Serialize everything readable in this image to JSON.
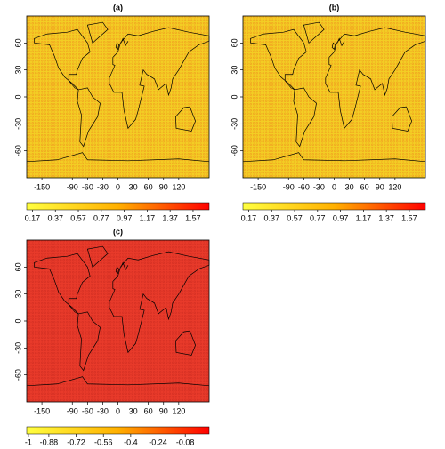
{
  "panels": [
    {
      "label": "(a)",
      "xlim": [
        -180,
        180
      ],
      "ylim": [
        -90,
        90
      ],
      "xticks": [
        -150,
        -90,
        -60,
        -30,
        0,
        30,
        60,
        90,
        120
      ],
      "yticks": [
        60,
        30,
        0,
        -30,
        -60
      ],
      "fill": "#f3cd24",
      "dot_color": "#f08a1c",
      "colorbar": {
        "lim": [
          0.12,
          1.71
        ],
        "ticks": [
          0.17,
          0.37,
          0.57,
          0.77,
          0.97,
          1.17,
          1.37,
          1.57
        ],
        "colors": [
          "#ffff40",
          "#ffb000",
          "#ff0000"
        ]
      }
    },
    {
      "label": "(b)",
      "xlim": [
        -180,
        180
      ],
      "ylim": [
        -90,
        90
      ],
      "xticks": [
        -150,
        -90,
        -60,
        -30,
        0,
        30,
        60,
        90,
        120
      ],
      "yticks": [
        60,
        30,
        0,
        -30,
        -60
      ],
      "fill": "#f3cd24",
      "dot_color": "#f08a1c",
      "colorbar": {
        "lim": [
          0.12,
          1.71
        ],
        "ticks": [
          0.17,
          0.37,
          0.57,
          0.77,
          0.97,
          1.17,
          1.37,
          1.57
        ],
        "colors": [
          "#ffff40",
          "#ffb000",
          "#ff0000"
        ]
      }
    },
    {
      "label": "(c)",
      "xlim": [
        -180,
        180
      ],
      "ylim": [
        -90,
        90
      ],
      "xticks": [
        -150,
        -90,
        -60,
        -30,
        0,
        30,
        60,
        90,
        120
      ],
      "yticks": [
        60,
        30,
        0,
        -30,
        -60
      ],
      "fill": "#e83a2a",
      "dot_color": "#c8281e",
      "colorbar": {
        "lim": [
          -1.01,
          0.06
        ],
        "ticks": [
          -1,
          -0.88,
          -0.72,
          -0.56,
          -0.4,
          -0.24,
          -0.08
        ],
        "colors": [
          "#ffff40",
          "#ffb000",
          "#ff0000"
        ]
      }
    }
  ]
}
